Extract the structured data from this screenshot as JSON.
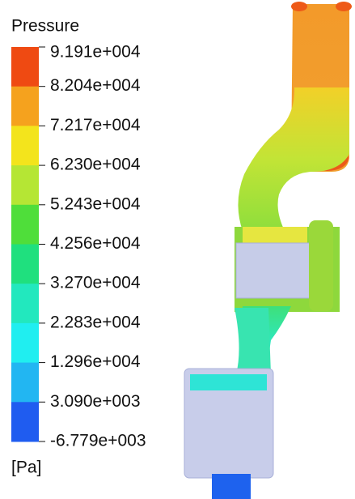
{
  "legend": {
    "title": "Pressure",
    "labels": [
      "9.191e+004",
      "8.204e+004",
      "7.217e+004",
      "6.230e+004",
      "5.243e+004",
      "4.256e+004",
      "3.270e+004",
      "2.283e+004",
      "1.296e+004",
      "3.090e+003",
      "-6.779e+003"
    ],
    "band_colors": [
      "#ef4a12",
      "#f5a21e",
      "#f3e41c",
      "#b5e634",
      "#4fde3a",
      "#1fe07e",
      "#22e8be",
      "#20eef0",
      "#22b6f2",
      "#1f5cf0"
    ],
    "unit": "[Pa]"
  }
}
